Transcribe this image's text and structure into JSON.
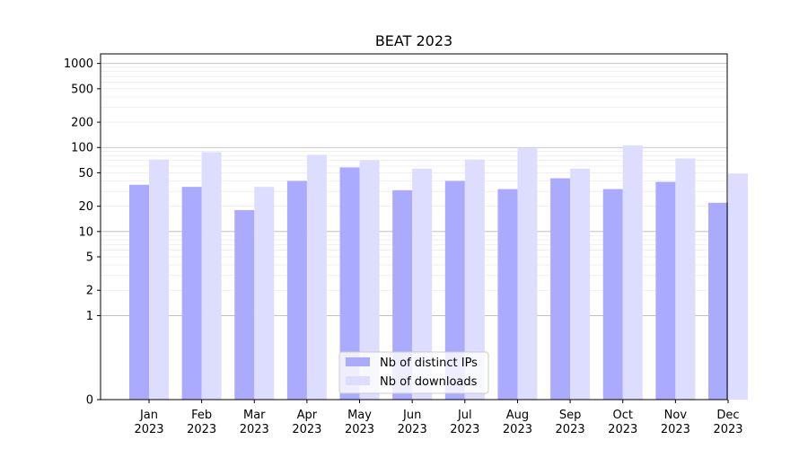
{
  "chart_data": {
    "type": "bar",
    "title": "BEAT 2023",
    "xlabel": "",
    "ylabel": "",
    "yscale": "symlog",
    "ylim": [
      0,
      1300
    ],
    "y_ticks": [
      0,
      1,
      2,
      5,
      10,
      20,
      50,
      100,
      200,
      500,
      1000
    ],
    "y_tick_labels": [
      "0",
      "1",
      "2",
      "5",
      "10",
      "20",
      "50",
      "100",
      "200",
      "500",
      "1000"
    ],
    "categories": [
      {
        "month": "Jan",
        "year": "2023"
      },
      {
        "month": "Feb",
        "year": "2023"
      },
      {
        "month": "Mar",
        "year": "2023"
      },
      {
        "month": "Apr",
        "year": "2023"
      },
      {
        "month": "May",
        "year": "2023"
      },
      {
        "month": "Jun",
        "year": "2023"
      },
      {
        "month": "Jul",
        "year": "2023"
      },
      {
        "month": "Aug",
        "year": "2023"
      },
      {
        "month": "Sep",
        "year": "2023"
      },
      {
        "month": "Oct",
        "year": "2023"
      },
      {
        "month": "Nov",
        "year": "2023"
      },
      {
        "month": "Dec",
        "year": "2023"
      }
    ],
    "series": [
      {
        "name": "Nb of distinct IPs",
        "color": "#aaaaff",
        "values": [
          36,
          34,
          18,
          40,
          58,
          31,
          40,
          32,
          43,
          32,
          39,
          22
        ]
      },
      {
        "name": "Nb of downloads",
        "color": "#ddddff",
        "values": [
          72,
          88,
          34,
          82,
          71,
          56,
          72,
          98,
          56,
          106,
          74,
          49
        ]
      }
    ],
    "grid": true,
    "legend": "lower-center"
  }
}
